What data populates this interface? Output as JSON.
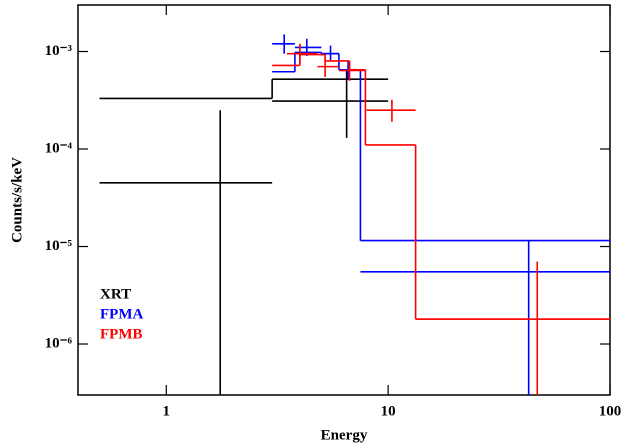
{
  "chart_data": {
    "type": "step",
    "xlabel": "Energy",
    "ylabel": "Counts/s/keV",
    "xlog": true,
    "ylog": true,
    "xlim": [
      0.4,
      100
    ],
    "ylim": [
      3e-07,
      0.003
    ],
    "xticks": [
      1,
      10,
      100
    ],
    "yticks": [
      {
        "value": 1e-06,
        "label": "10⁻⁶"
      },
      {
        "value": 1e-05,
        "label": "10⁻⁵"
      },
      {
        "value": 0.0001,
        "label": "10⁻⁴"
      },
      {
        "value": 0.001,
        "label": "10⁻³"
      }
    ],
    "legend": "lower left",
    "series": [
      {
        "name": "XRT",
        "color": "#000000",
        "x": [
          1.75,
          6.5
        ],
        "x_low": [
          0.5,
          3.0
        ],
        "x_high": [
          3.0,
          10.0
        ],
        "y": [
          4.5e-05,
          0.00031
        ],
        "y_low": [
          0,
          0.00013
        ],
        "y_high": [
          0.00025,
          0.00065
        ],
        "model_edges": [
          0.5,
          3.0,
          10.0
        ],
        "model_values": [
          0.00033,
          0.00052
        ]
      },
      {
        "name": "FPMA",
        "color": "#0000ff",
        "x": [
          3.4,
          4.3,
          5.5,
          6.6,
          43
        ],
        "x_low": [
          3.0,
          3.8,
          5.0,
          6.0,
          7.5
        ],
        "x_high": [
          3.8,
          5.0,
          6.0,
          7.5,
          100
        ],
        "y": [
          0.0012,
          0.0011,
          0.00095,
          0.00065,
          5.5e-06
        ],
        "y_low": [
          0.00095,
          0.0009,
          0.0008,
          0.00052,
          0
        ],
        "y_high": [
          0.0015,
          0.00135,
          0.00115,
          0.0008,
          1.15e-05
        ],
        "model_edges": [
          3.0,
          3.8,
          5.0,
          6.0,
          7.5,
          100
        ],
        "model_values": [
          0.00062,
          0.00098,
          0.00095,
          0.00065,
          1.15e-05
        ]
      },
      {
        "name": "FPMB",
        "color": "#ff0000",
        "x": [
          4.0,
          5.2,
          6.7,
          10.4,
          47
        ],
        "x_low": [
          3.5,
          4.8,
          6.0,
          8.0,
          13.3
        ],
        "x_high": [
          4.8,
          6.0,
          7.9,
          13.3,
          100
        ],
        "y": [
          0.00095,
          0.0007,
          0.00064,
          0.00025,
          1.8e-06
        ],
        "y_low": [
          0.00075,
          0.00055,
          0.0005,
          0.00019,
          0
        ],
        "y_high": [
          0.0012,
          0.00087,
          0.0008,
          0.00032,
          7e-06
        ],
        "model_edges": [
          3.0,
          4.0,
          5.2,
          6.7,
          7.9,
          13.3,
          100
        ],
        "model_values": [
          0.00072,
          0.00093,
          0.0008,
          0.00065,
          0.00011,
          1.8e-06
        ]
      }
    ]
  }
}
